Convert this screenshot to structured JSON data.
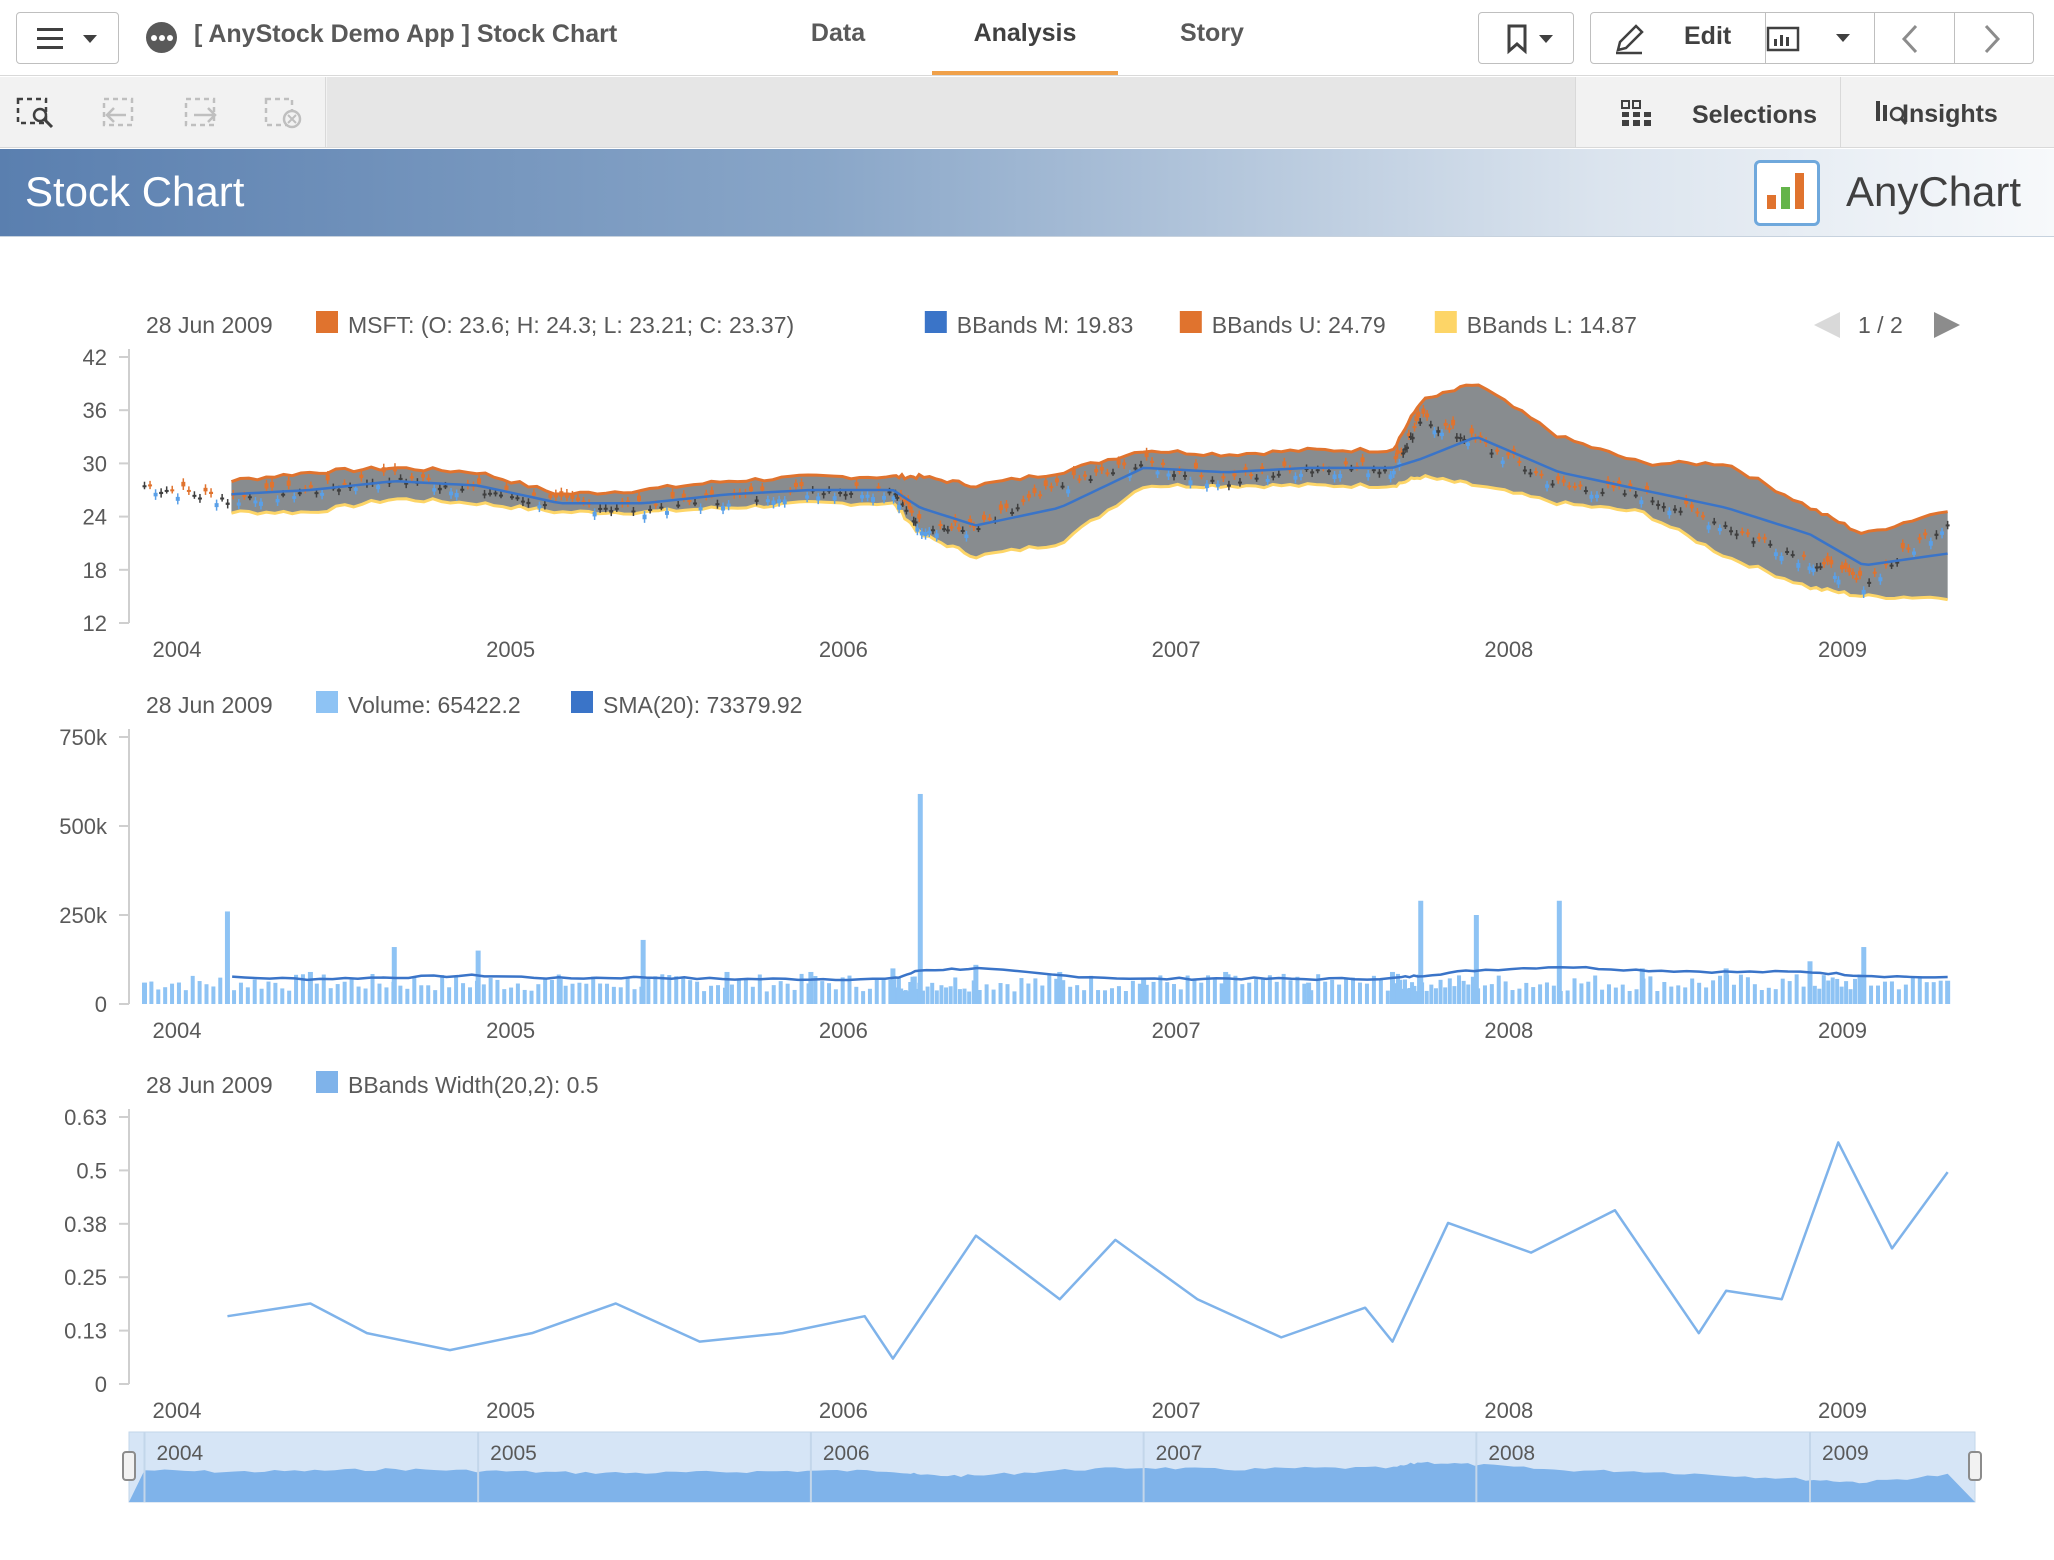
{
  "header": {
    "app_title": "[ AnyStock Demo App ] Stock Chart",
    "tabs": [
      {
        "label": "Data",
        "active": false
      },
      {
        "label": "Analysis",
        "active": true
      },
      {
        "label": "Story",
        "active": false
      }
    ],
    "edit_label": "Edit",
    "accent_color": "#f0a14a"
  },
  "toolbar": {
    "selections_label": "Selections",
    "insights_label": "Insights"
  },
  "sheet": {
    "title": "Stock Chart",
    "brand": "AnyChart"
  },
  "chart_data": [
    {
      "type": "candlestick",
      "legend_date": "28 Jun 2009",
      "legend": [
        {
          "text": "MSFT: (O: 23.6; H: 24.3; L: 23.21; C: 23.37)",
          "color": "#e0732e"
        },
        {
          "text": "BBands M: 19.83",
          "color": "#3a74c8"
        },
        {
          "text": "BBands U: 24.79",
          "color": "#e0732e"
        },
        {
          "text": "BBands L: 14.87",
          "color": "#fdd567"
        }
      ],
      "pager": "1 / 2",
      "ylim": [
        12,
        42
      ],
      "yticks": [
        "42",
        "36",
        "30",
        "24",
        "18",
        "12"
      ],
      "xticks": [
        "2004",
        "2005",
        "2006",
        "2007",
        "2008",
        "2009"
      ],
      "x": [
        "2004-01",
        "2004-04",
        "2004-07",
        "2004-10",
        "2005-01",
        "2005-04",
        "2005-07",
        "2005-10",
        "2006-01",
        "2006-04",
        "2006-05",
        "2006-07",
        "2006-10",
        "2007-01",
        "2007-04",
        "2007-07",
        "2007-10",
        "2007-11",
        "2008-01",
        "2008-04",
        "2008-07",
        "2008-10",
        "2009-01",
        "2009-03",
        "2009-06"
      ],
      "series": [
        {
          "name": "MSFT",
          "values": [
            27.5,
            26,
            27,
            28.5,
            27,
            25.5,
            25,
            26,
            27,
            27,
            23,
            22.5,
            27.5,
            30,
            28,
            29.5,
            29.5,
            35,
            32.5,
            27.5,
            26.5,
            23,
            19,
            16.5,
            23.4
          ],
          "color": "#e0732e"
        },
        {
          "name": "BBands M",
          "values": [
            null,
            26.5,
            27,
            28,
            27.5,
            25.5,
            25.5,
            26.5,
            27,
            27,
            25,
            23,
            25,
            29.5,
            29,
            29.5,
            29.5,
            30.5,
            33,
            29,
            27,
            25,
            22,
            18.5,
            19.83
          ],
          "color": "#3a74c8"
        },
        {
          "name": "BBands U",
          "values": [
            null,
            28,
            29,
            29.5,
            29,
            26.5,
            27,
            28,
            28.5,
            28.5,
            28.5,
            27.5,
            29,
            31.5,
            31,
            31.5,
            31.5,
            37,
            39,
            33,
            30,
            30,
            25,
            22,
            24.79
          ],
          "color": "#e0732e"
        },
        {
          "name": "BBands L",
          "values": [
            null,
            24.5,
            24.5,
            26,
            25.5,
            24.5,
            24.5,
            25,
            25.5,
            25.5,
            22,
            19.5,
            21,
            27.5,
            27.5,
            27.5,
            27.5,
            28.5,
            27.5,
            25.5,
            24.5,
            19.5,
            16,
            15,
            14.87
          ],
          "color": "#fdd567"
        }
      ]
    },
    {
      "type": "bar",
      "legend_date": "28 Jun 2009",
      "legend": [
        {
          "text": "Volume: 65422.2",
          "color": "#8ec3f4"
        },
        {
          "text": "SMA(20): 73379.92",
          "color": "#3a74c8"
        }
      ],
      "ylim": [
        0,
        750000
      ],
      "yticks": [
        "750k",
        "500k",
        "250k",
        "0"
      ],
      "xticks": [
        "2004",
        "2005",
        "2006",
        "2007",
        "2008",
        "2009"
      ],
      "x": [
        "2004-01",
        "2004-04",
        "2004-07",
        "2004-10",
        "2005-01",
        "2005-04",
        "2005-07",
        "2005-10",
        "2006-01",
        "2006-04",
        "2006-05",
        "2006-07",
        "2006-10",
        "2007-01",
        "2007-04",
        "2007-07",
        "2007-10",
        "2007-11",
        "2008-01",
        "2008-04",
        "2008-07",
        "2008-10",
        "2009-01",
        "2009-03",
        "2009-06"
      ],
      "series": [
        {
          "name": "Volume",
          "values": [
            60000,
            260000,
            90000,
            160000,
            150000,
            70000,
            180000,
            90000,
            90000,
            100000,
            590000,
            110000,
            90000,
            70000,
            90000,
            60000,
            90000,
            290000,
            250000,
            290000,
            100000,
            100000,
            120000,
            160000,
            65422
          ],
          "color": "#8ec3f4"
        },
        {
          "name": "SMA(20)",
          "values": [
            null,
            75000,
            70000,
            75000,
            80000,
            72000,
            75000,
            70000,
            70000,
            70000,
            95000,
            100000,
            80000,
            70000,
            72000,
            70000,
            72000,
            80000,
            95000,
            105000,
            95000,
            90000,
            90000,
            80000,
            73380
          ],
          "color": "#3a74c8"
        }
      ]
    },
    {
      "type": "line",
      "legend_date": "28 Jun 2009",
      "legend": [
        {
          "text": "BBands Width(20,2): 0.5",
          "color": "#7fb3ea"
        }
      ],
      "ylim": [
        0,
        0.63
      ],
      "yticks": [
        "0.63",
        "0.5",
        "0.38",
        "0.25",
        "0.13",
        "0"
      ],
      "xticks": [
        "2004",
        "2005",
        "2006",
        "2007",
        "2008",
        "2009"
      ],
      "x": [
        "2004-04",
        "2004-07",
        "2004-09",
        "2004-12",
        "2005-03",
        "2005-06",
        "2005-09",
        "2005-12",
        "2006-03",
        "2006-04",
        "2006-07",
        "2006-10",
        "2006-12",
        "2007-03",
        "2007-06",
        "2007-09",
        "2007-10",
        "2007-12",
        "2008-03",
        "2008-06",
        "2008-09",
        "2008-10",
        "2008-12",
        "2009-02",
        "2009-04",
        "2009-06"
      ],
      "series": [
        {
          "name": "BBands Width(20,2)",
          "values": [
            0.16,
            0.19,
            0.12,
            0.08,
            0.12,
            0.19,
            0.1,
            0.12,
            0.16,
            0.06,
            0.35,
            0.2,
            0.34,
            0.2,
            0.11,
            0.18,
            0.1,
            0.38,
            0.31,
            0.41,
            0.12,
            0.22,
            0.2,
            0.57,
            0.32,
            0.5
          ],
          "color": "#7fb3ea"
        }
      ]
    }
  ],
  "navigator": {
    "labels": [
      "2004",
      "2005",
      "2006",
      "2007",
      "2008",
      "2009"
    ],
    "fill_color": "#7fb3ea"
  }
}
